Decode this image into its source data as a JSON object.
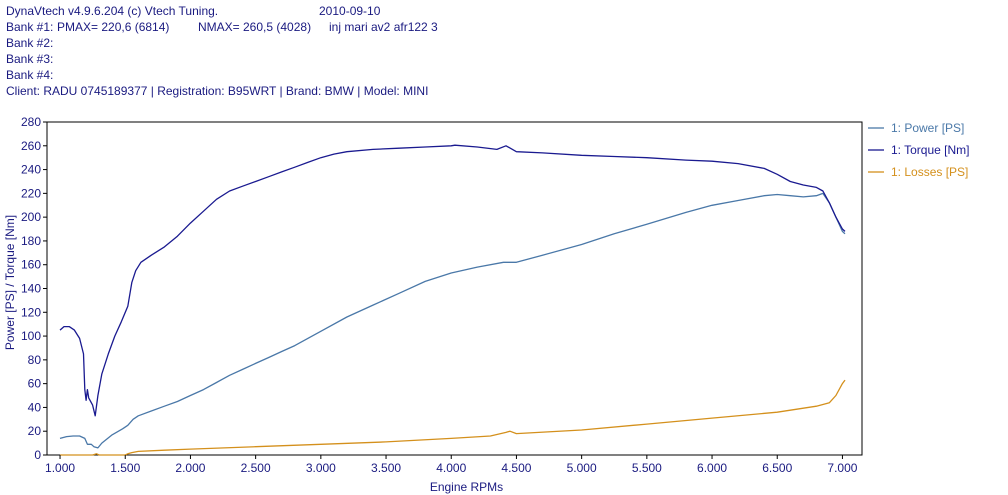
{
  "header": {
    "app": "DynaVtech v4.9.6.204 (c) Vtech Tuning.",
    "date": "2010-09-10",
    "bank1_prefix": "Bank #1:",
    "bank1_pmax": "PMAX= 220,6 (6814)",
    "bank1_nmax": "NMAX= 260,5 (4028)",
    "bank1_note": "inj mari av2 afr122 3",
    "bank2": "Bank #2:",
    "bank3": "Bank #3:",
    "bank4": "Bank #4:",
    "client": "Client: RADU 0745189377 | Registration: B95WRT | Brand: BMW | Model: MINI"
  },
  "colors": {
    "power": "#4a78a8",
    "torque": "#1a1a90",
    "losses": "#d4901c",
    "text": "#1a1a80",
    "axis": "#000000"
  },
  "chart_data": {
    "type": "line",
    "title": "",
    "xlabel": "Engine RPMs",
    "ylabel": "Power [PS] / Torque [Nm]",
    "xlim": [
      900,
      7150
    ],
    "ylim": [
      0,
      280
    ],
    "grid": false,
    "legend_placement": "right",
    "x_ticks": [
      1000,
      1500,
      2000,
      2500,
      3000,
      3500,
      4000,
      4500,
      5000,
      5500,
      6000,
      6500,
      7000
    ],
    "x_tick_labels": [
      "1.000",
      "1.500",
      "2.000",
      "2.500",
      "3.000",
      "3.500",
      "4.000",
      "4.500",
      "5.000",
      "5.500",
      "6.000",
      "6.500",
      "7.000"
    ],
    "y_ticks": [
      0,
      20,
      40,
      60,
      80,
      100,
      120,
      140,
      160,
      180,
      200,
      220,
      240,
      260,
      280
    ],
    "series": [
      {
        "name": "1: Power [PS]",
        "color_key": "power",
        "x": [
          1000,
          1050,
          1100,
          1150,
          1190,
          1210,
          1240,
          1260,
          1290,
          1320,
          1400,
          1480,
          1520,
          1560,
          1600,
          1700,
          1800,
          1900,
          2000,
          2100,
          2200,
          2300,
          2400,
          2500,
          2600,
          2700,
          2800,
          2900,
          3000,
          3200,
          3400,
          3600,
          3800,
          4000,
          4200,
          4400,
          4450,
          4500,
          4700,
          5000,
          5250,
          5500,
          5800,
          6000,
          6200,
          6400,
          6500,
          6600,
          6700,
          6800,
          6850,
          6900,
          6950,
          7000,
          7020
        ],
        "y": [
          14,
          15.5,
          16,
          16,
          14,
          9,
          9,
          7,
          6,
          10,
          17,
          22,
          25,
          30,
          33,
          37,
          41,
          45,
          50,
          55,
          61,
          67,
          72,
          77,
          82,
          87,
          92,
          98,
          104,
          116,
          126,
          136,
          146,
          153,
          158,
          162,
          162,
          162,
          168,
          177,
          186,
          194,
          204,
          210,
          214,
          218,
          219,
          218,
          217,
          218,
          220,
          212,
          200,
          188,
          186
        ]
      },
      {
        "name": "1: Torque [Nm]",
        "color_key": "torque",
        "x": [
          1000,
          1030,
          1070,
          1110,
          1150,
          1180,
          1190,
          1200,
          1210,
          1220,
          1250,
          1270,
          1290,
          1320,
          1370,
          1420,
          1470,
          1520,
          1550,
          1580,
          1620,
          1700,
          1800,
          1900,
          2000,
          2100,
          2200,
          2300,
          2400,
          2500,
          2600,
          2700,
          2800,
          2900,
          3000,
          3100,
          3200,
          3400,
          3600,
          3800,
          4000,
          4028,
          4200,
          4350,
          4420,
          4500,
          4700,
          5000,
          5250,
          5500,
          5800,
          6000,
          6200,
          6400,
          6500,
          6600,
          6700,
          6800,
          6850,
          6900,
          6950,
          7000,
          7020
        ],
        "y": [
          105,
          108,
          108,
          105,
          98,
          85,
          55,
          46,
          55,
          48,
          42,
          33,
          50,
          68,
          85,
          100,
          112,
          125,
          145,
          155,
          162,
          168,
          175,
          184,
          195,
          205,
          215,
          222,
          226,
          230,
          234,
          238,
          242,
          246,
          250,
          253,
          255,
          257,
          258,
          259,
          260,
          260.5,
          259,
          257,
          260,
          255,
          254,
          252,
          251,
          250,
          248,
          247,
          245,
          241,
          236,
          230,
          227,
          225,
          222,
          212,
          200,
          190,
          188
        ]
      },
      {
        "name": "1: Losses [PS]",
        "color_key": "losses",
        "x": [
          1000,
          1050,
          1100,
          1200,
          1250,
          1280,
          1300,
          1500,
          1520,
          1550,
          1600,
          1800,
          2000,
          2500,
          3000,
          3500,
          4000,
          4300,
          4420,
          4450,
          4500,
          5000,
          5500,
          6000,
          6500,
          6800,
          6900,
          6950,
          7000,
          7020
        ],
        "y": [
          0,
          0,
          0,
          0,
          0,
          1,
          0,
          0,
          1,
          2,
          3,
          4,
          5,
          7,
          9,
          11,
          14,
          16,
          19,
          20,
          18,
          21,
          26,
          31,
          36,
          41,
          44,
          50,
          60,
          63
        ]
      }
    ]
  }
}
